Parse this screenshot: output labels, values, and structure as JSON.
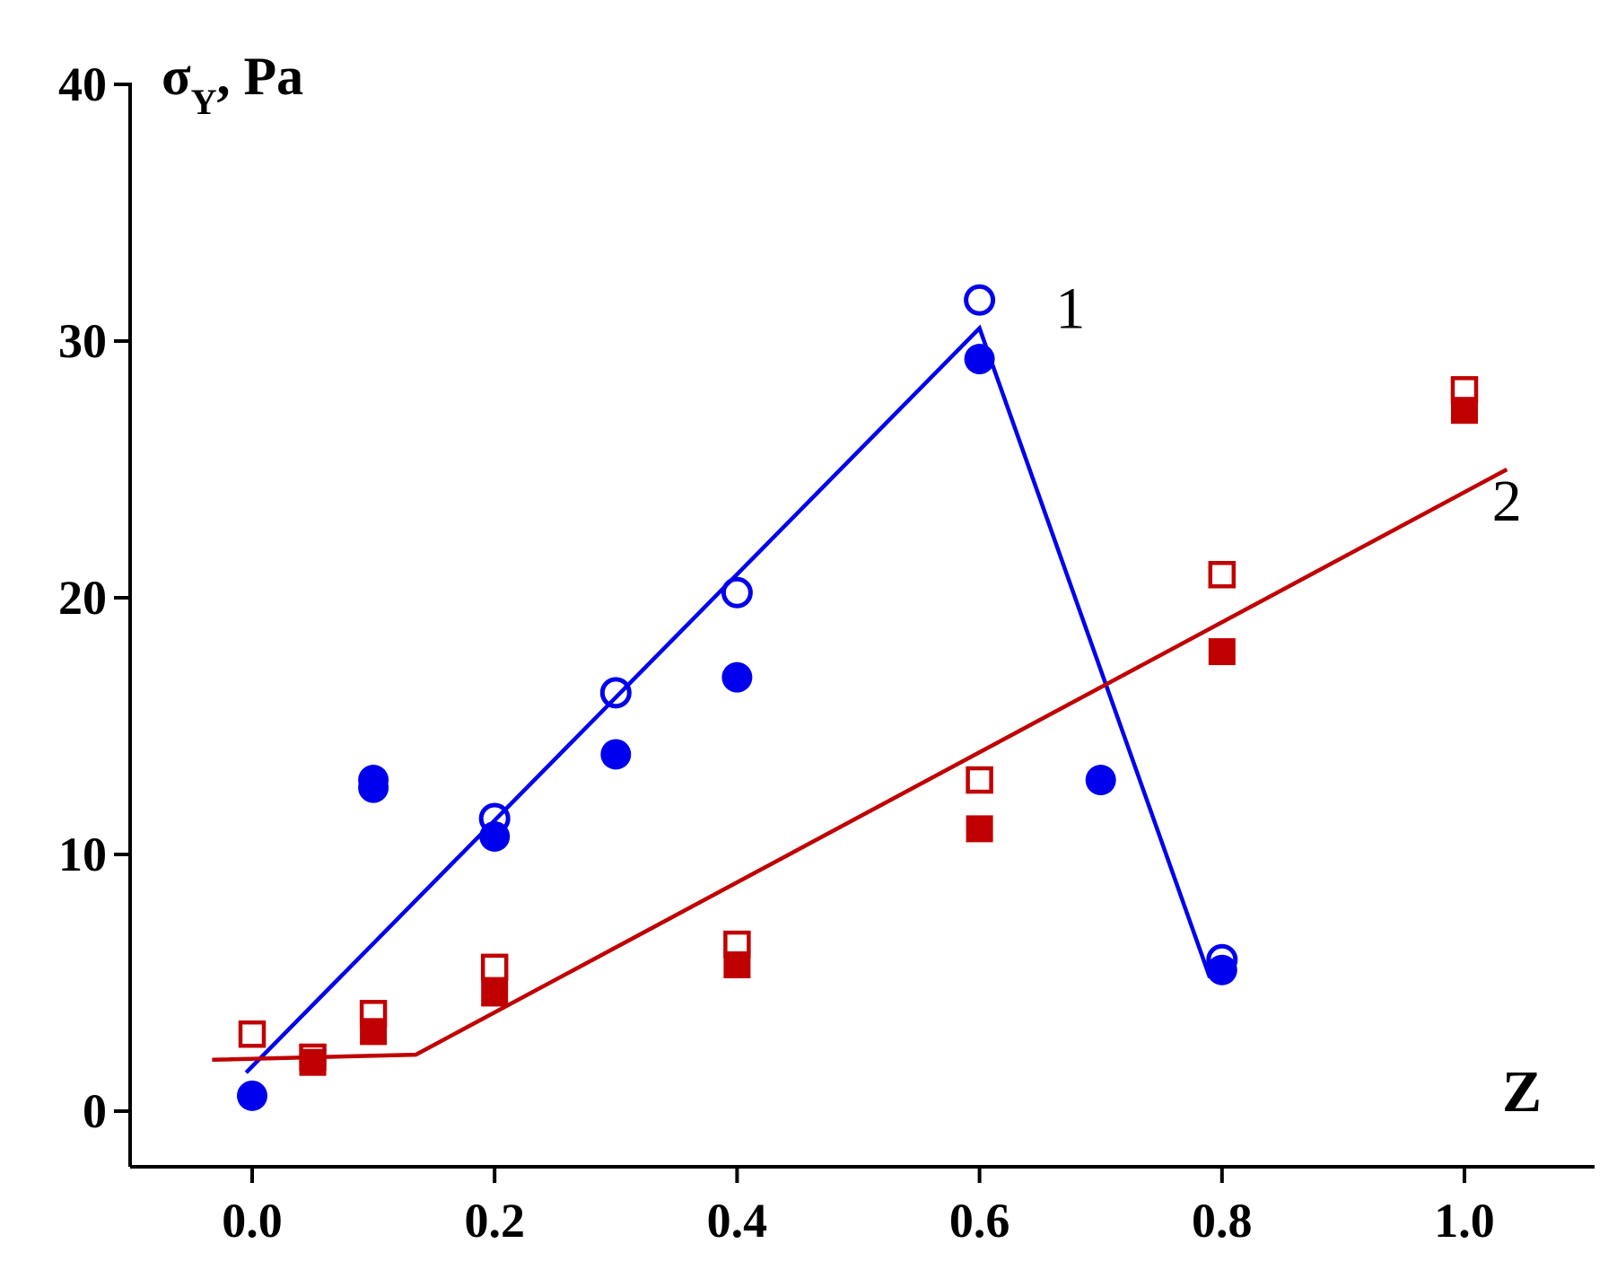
{
  "chart_data": {
    "type": "scatter",
    "title": "",
    "xlabel": "Z",
    "ylabel_base": "σ",
    "ylabel_sub": "Y",
    "ylabel_suffix": ", Pa",
    "xlim": [
      -0.1,
      1.1
    ],
    "ylim": [
      -2,
      40
    ],
    "xticks": [
      {
        "value": 0.0,
        "label": "0.0"
      },
      {
        "value": 0.2,
        "label": "0.2"
      },
      {
        "value": 0.4,
        "label": "0.4"
      },
      {
        "value": 0.6,
        "label": "0.6"
      },
      {
        "value": 0.8,
        "label": "0.8"
      },
      {
        "value": 1.0,
        "label": "1.0"
      }
    ],
    "yticks": [
      {
        "value": 0,
        "label": "0"
      },
      {
        "value": 10,
        "label": "10"
      },
      {
        "value": 20,
        "label": "20"
      },
      {
        "value": 30,
        "label": "30"
      },
      {
        "value": 40,
        "label": "40"
      }
    ],
    "grid": false,
    "colors": {
      "blue": "#0000ee",
      "red": "#c00000",
      "axis": "#000000"
    },
    "series": [
      {
        "marker": "circle-open",
        "color": "#0000ee",
        "points": [
          [
            0.2,
            11.4
          ],
          [
            0.3,
            16.3
          ],
          [
            0.4,
            20.2
          ],
          [
            0.6,
            31.6
          ],
          [
            0.8,
            5.9
          ]
        ]
      },
      {
        "marker": "circle-filled",
        "color": "#0000ee",
        "points": [
          [
            0.0,
            0.6
          ],
          [
            0.1,
            12.9
          ],
          [
            0.1,
            12.6
          ],
          [
            0.2,
            10.7
          ],
          [
            0.3,
            13.9
          ],
          [
            0.4,
            16.9
          ],
          [
            0.6,
            29.3
          ],
          [
            0.7,
            12.9
          ],
          [
            0.8,
            5.5
          ]
        ]
      },
      {
        "marker": "square-open",
        "color": "#c00000",
        "points": [
          [
            0.0,
            3.0
          ],
          [
            0.05,
            2.1
          ],
          [
            0.1,
            3.8
          ],
          [
            0.2,
            5.6
          ],
          [
            0.4,
            6.5
          ],
          [
            0.6,
            12.9
          ],
          [
            0.8,
            20.9
          ],
          [
            1.0,
            28.1
          ]
        ]
      },
      {
        "marker": "square-filled",
        "color": "#c00000",
        "points": [
          [
            0.05,
            1.9
          ],
          [
            0.1,
            3.1
          ],
          [
            0.2,
            4.6
          ],
          [
            0.4,
            5.7
          ],
          [
            0.6,
            11.0
          ],
          [
            0.8,
            17.9
          ],
          [
            1.0,
            27.3
          ]
        ]
      }
    ],
    "fit_lines": [
      {
        "label": "1",
        "color": "#0000ee",
        "points": [
          [
            -0.005,
            1.5
          ],
          [
            0.6,
            30.5
          ],
          [
            0.79,
            5.2
          ]
        ]
      },
      {
        "label": "2",
        "color": "#c00000",
        "points": [
          [
            -0.033,
            2.0
          ],
          [
            0.135,
            2.2
          ],
          [
            1.035,
            25.0
          ]
        ]
      }
    ],
    "curve_labels": [
      {
        "text": "1",
        "x": 0.675,
        "y": 30.5
      },
      {
        "text": "2",
        "x": 1.035,
        "y": 23.0
      }
    ]
  }
}
